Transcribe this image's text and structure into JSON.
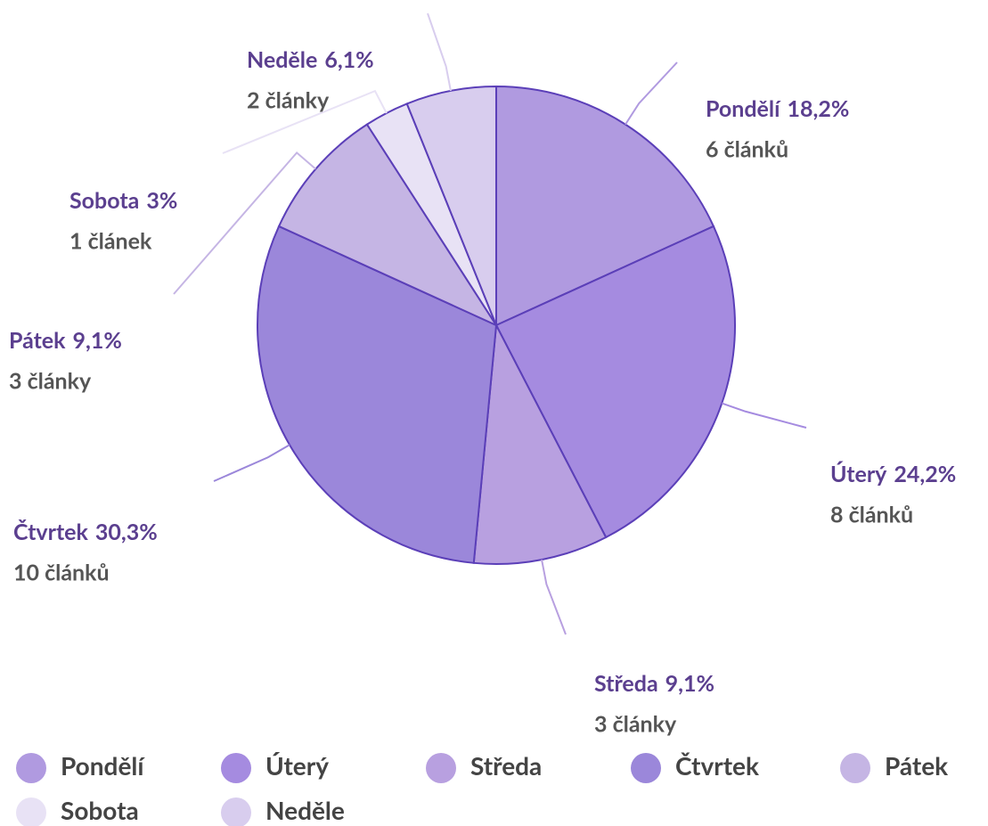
{
  "chart_data": {
    "type": "pie",
    "categories": [
      "Pondělí",
      "Úterý",
      "Středa",
      "Čtvrtek",
      "Pátek",
      "Sobota",
      "Neděle"
    ],
    "values": [
      18.2,
      24.2,
      9.1,
      30.3,
      9.1,
      3,
      6.1
    ],
    "value_labels": [
      "18,2%",
      "24,2%",
      "9,1%",
      "30,3%",
      "9,1%",
      "3%",
      "6,1%"
    ],
    "count_labels": [
      "6 článků",
      "8 článků",
      "3 články",
      "10 článků",
      "3 články",
      "1 článek",
      "2 články"
    ],
    "colors": [
      "#b09ae0",
      "#a58be0",
      "#b8a0e0",
      "#9b87da",
      "#c5b5e4",
      "#e8e2f5",
      "#d8cdee"
    ],
    "legend": "bottom"
  }
}
